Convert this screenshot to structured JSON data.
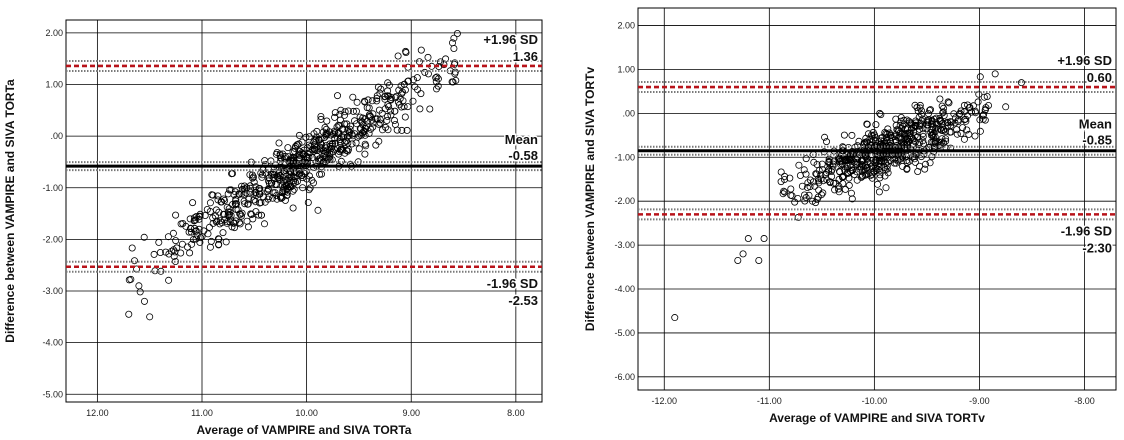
{
  "chart_data": [
    {
      "type": "scatter",
      "title": "",
      "xlabel": "Average of VAMPIRE and SIVA TORTa",
      "ylabel": "Difference between VAMPIRE and SIVA TORTa",
      "x_reversed": true,
      "xlim": [
        12.3,
        7.75
      ],
      "ylim": [
        -5.15,
        2.25
      ],
      "x_ticks": [
        12,
        11,
        10,
        9,
        8
      ],
      "x_tick_labels": [
        "12.00",
        "11.00",
        "10.00",
        "9.00",
        "8.00"
      ],
      "y_ticks": [
        2,
        1,
        0,
        -1,
        -2,
        -3,
        -4,
        -5
      ],
      "y_tick_labels": [
        "2.00",
        "1.00",
        ".00",
        "-1.00",
        "-2.00",
        "-3.00",
        "-4.00",
        "-5.00"
      ],
      "grid": true,
      "mean": -0.58,
      "upper_loa": 1.36,
      "lower_loa": -2.53,
      "annotations": {
        "upper_label": "+1.96 SD",
        "upper_value": "1.36",
        "mean_label": "Mean",
        "mean_value": "-0.58",
        "lower_label": "-1.96 SD",
        "lower_value": "-2.53"
      },
      "point_cloud": {
        "n": 650,
        "x_range": [
          11.7,
          8.55
        ],
        "slope": -1.33,
        "anchor_x": 10.0,
        "anchor_y": -0.45,
        "noise_sd": 0.28
      },
      "extra_points": [
        {
          "x": 11.7,
          "y": -3.45
        },
        {
          "x": 11.5,
          "y": -3.5
        },
        {
          "x": 11.55,
          "y": -3.2
        },
        {
          "x": 9.05,
          "y": 1.62
        },
        {
          "x": 8.72,
          "y": 1.44
        },
        {
          "x": 8.6,
          "y": 1.05
        }
      ]
    },
    {
      "type": "scatter",
      "title": "",
      "xlabel": "Average of VAMPIRE and SIVA TORTv",
      "ylabel": "Difference between VAMPIRE and SIVA TORTv",
      "x_reversed": false,
      "xlim": [
        -12.25,
        -7.7
      ],
      "ylim": [
        -6.3,
        2.4
      ],
      "x_ticks": [
        -12,
        -11,
        -10,
        -9,
        -8
      ],
      "x_tick_labels": [
        "-12.00",
        "-11.00",
        "-10.00",
        "-9.00",
        "-8.00"
      ],
      "y_ticks": [
        2,
        1,
        0,
        -1,
        -2,
        -3,
        -4,
        -5,
        -6
      ],
      "y_tick_labels": [
        "2.00",
        "1.00",
        ".00",
        "-1.00",
        "-2.00",
        "-3.00",
        "-4.00",
        "-5.00",
        "-6.00"
      ],
      "grid": true,
      "mean": -0.85,
      "upper_loa": 0.6,
      "lower_loa": -2.3,
      "annotations": {
        "upper_label": "+1.96 SD",
        "upper_value": "0.60",
        "mean_label": "Mean",
        "mean_value": "-0.85",
        "lower_label": "-1.96 SD",
        "lower_value": "-2.30"
      },
      "point_cloud": {
        "n": 600,
        "x_range": [
          -10.9,
          -8.9
        ],
        "slope": 0.95,
        "anchor_x": -10.0,
        "anchor_y": -0.9,
        "noise_sd": 0.32
      },
      "extra_points": [
        {
          "x": -11.9,
          "y": -4.65
        },
        {
          "x": -11.3,
          "y": -3.35
        },
        {
          "x": -11.25,
          "y": -3.2
        },
        {
          "x": -11.1,
          "y": -3.35
        },
        {
          "x": -11.05,
          "y": -2.85
        },
        {
          "x": -11.2,
          "y": -2.85
        },
        {
          "x": -8.6,
          "y": 0.7
        },
        {
          "x": -8.85,
          "y": 0.9
        },
        {
          "x": -8.75,
          "y": 0.15
        }
      ]
    }
  ]
}
